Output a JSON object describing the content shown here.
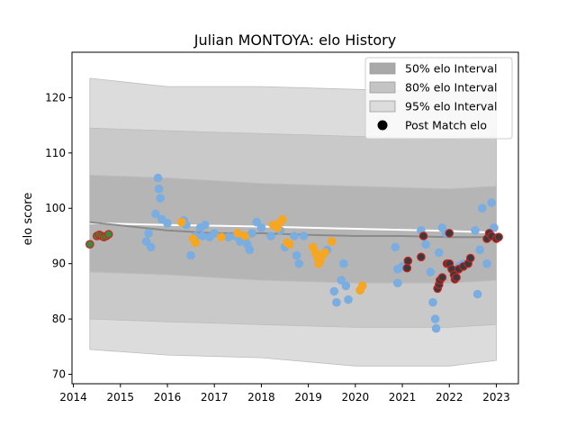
{
  "chart_data": {
    "type": "scatter",
    "title": "Julian MONTOYA: elo History",
    "xlabel": "",
    "ylabel": "elo score",
    "xlim": [
      2013.97,
      2023.47
    ],
    "ylim": [
      68.3,
      128.2
    ],
    "x_ticks": [
      2014,
      2015,
      2016,
      2017,
      2018,
      2019,
      2020,
      2021,
      2022,
      2023
    ],
    "x_tick_labels": [
      "2014",
      "2015",
      "2016",
      "2017",
      "2018",
      "2019",
      "2020",
      "2021",
      "2022",
      "2023"
    ],
    "y_ticks": [
      70,
      80,
      90,
      100,
      110,
      120
    ],
    "y_tick_labels": [
      "70",
      "80",
      "90",
      "100",
      "110",
      "120"
    ],
    "grid": false,
    "legend_position": "top-right",
    "legend": [
      {
        "label": "50% elo Interval",
        "kind": "patch",
        "color": "#a9a9a9"
      },
      {
        "label": "80% elo Interval",
        "kind": "patch",
        "color": "#c4c4c4"
      },
      {
        "label": "95% elo Interval",
        "kind": "patch",
        "color": "#dcdcdc"
      },
      {
        "label": "Post Match elo",
        "kind": "marker",
        "color": "#000000"
      }
    ],
    "bands": [
      {
        "name": "95% elo Interval",
        "color": "#dcdcdc",
        "x": [
          2014.35,
          2016.0,
          2018.0,
          2020.0,
          2022.0,
          2023.0
        ],
        "upper": [
          123.5,
          122.0,
          122.0,
          121.5,
          121.0,
          121.5
        ],
        "lower": [
          74.5,
          73.5,
          73.0,
          71.5,
          71.5,
          72.5
        ]
      },
      {
        "name": "80% elo Interval",
        "color": "#c9c9c9",
        "x": [
          2014.35,
          2016.0,
          2018.0,
          2020.0,
          2022.0,
          2023.0
        ],
        "upper": [
          114.5,
          114.0,
          113.5,
          113.0,
          112.5,
          113.0
        ],
        "lower": [
          80.0,
          79.5,
          79.0,
          78.5,
          78.5,
          79.0
        ]
      },
      {
        "name": "50% elo Interval",
        "color": "#b5b5b5",
        "x": [
          2014.35,
          2016.0,
          2018.0,
          2020.0,
          2022.0,
          2023.0
        ],
        "upper": [
          106.0,
          105.5,
          104.5,
          104.0,
          103.5,
          104.0
        ],
        "lower": [
          88.5,
          88.0,
          87.0,
          86.5,
          86.5,
          87.0
        ]
      }
    ],
    "lines": [
      {
        "name": "mean",
        "color": "#ffffff",
        "x": [
          2014.35,
          2016.0,
          2018.0,
          2020.0,
          2022.0,
          2023.0
        ],
        "y": [
          97.3,
          97.0,
          96.7,
          96.3,
          95.9,
          95.6
        ]
      },
      {
        "name": "median",
        "color": "#8a8a8a",
        "x": [
          2014.35,
          2016.0,
          2017.0,
          2018.0,
          2019.0,
          2020.0,
          2021.0,
          2022.0,
          2023.0
        ],
        "y": [
          97.5,
          96.0,
          95.5,
          95.5,
          95.2,
          95.0,
          95.0,
          94.8,
          94.8
        ]
      }
    ],
    "series": [
      {
        "name": "Post Match elo",
        "color": "#7aade0",
        "edge": "#7aade0",
        "points": [
          [
            2015.55,
            94.0
          ],
          [
            2015.6,
            95.5
          ],
          [
            2015.65,
            93.0
          ],
          [
            2015.75,
            99.0
          ],
          [
            2015.8,
            105.5
          ],
          [
            2015.82,
            103.5
          ],
          [
            2015.85,
            101.8
          ],
          [
            2015.88,
            98.0
          ],
          [
            2016.0,
            97.3
          ],
          [
            2016.35,
            97.8
          ],
          [
            2016.4,
            97.0
          ],
          [
            2016.5,
            91.5
          ],
          [
            2016.6,
            95.0
          ],
          [
            2016.7,
            96.5
          ],
          [
            2016.75,
            95.0
          ],
          [
            2016.8,
            97.0
          ],
          [
            2016.9,
            94.8
          ],
          [
            2017.0,
            95.5
          ],
          [
            2017.3,
            94.8
          ],
          [
            2017.45,
            95.0
          ],
          [
            2017.55,
            94.0
          ],
          [
            2017.65,
            94.5
          ],
          [
            2017.7,
            93.5
          ],
          [
            2017.75,
            92.5
          ],
          [
            2017.8,
            95.5
          ],
          [
            2017.9,
            97.5
          ],
          [
            2018.0,
            96.5
          ],
          [
            2018.2,
            95.0
          ],
          [
            2018.4,
            96.0
          ],
          [
            2018.5,
            93.0
          ],
          [
            2018.7,
            95.0
          ],
          [
            2018.75,
            91.5
          ],
          [
            2018.8,
            90.0
          ],
          [
            2018.9,
            95.0
          ],
          [
            2019.4,
            92.5
          ],
          [
            2019.55,
            85.0
          ],
          [
            2019.6,
            83.0
          ],
          [
            2019.7,
            87.0
          ],
          [
            2019.75,
            90.0
          ],
          [
            2019.8,
            86.0
          ],
          [
            2019.85,
            83.5
          ],
          [
            2020.85,
            93.0
          ],
          [
            2020.9,
            89.0
          ],
          [
            2020.9,
            86.5
          ],
          [
            2021.0,
            89.5
          ],
          [
            2021.4,
            96.0
          ],
          [
            2021.5,
            93.5
          ],
          [
            2021.6,
            88.5
          ],
          [
            2021.65,
            83.0
          ],
          [
            2021.7,
            80.0
          ],
          [
            2021.72,
            78.3
          ],
          [
            2021.78,
            92.0
          ],
          [
            2021.85,
            96.5
          ],
          [
            2021.92,
            95.5
          ],
          [
            2022.2,
            89.5
          ],
          [
            2022.3,
            90.0
          ],
          [
            2022.55,
            96.0
          ],
          [
            2022.6,
            84.5
          ],
          [
            2022.65,
            92.5
          ],
          [
            2022.7,
            100.0
          ],
          [
            2022.8,
            90.0
          ],
          [
            2022.9,
            101.0
          ],
          [
            2022.95,
            96.5
          ]
        ]
      },
      {
        "name": "Post Match elo",
        "color": "#f5a623",
        "edge": "#f5a623",
        "points": [
          [
            2016.3,
            97.5
          ],
          [
            2016.55,
            94.5
          ],
          [
            2016.6,
            93.8
          ],
          [
            2017.15,
            94.8
          ],
          [
            2017.5,
            95.5
          ],
          [
            2017.65,
            95.0
          ],
          [
            2018.25,
            97.0
          ],
          [
            2018.35,
            96.5
          ],
          [
            2018.4,
            97.5
          ],
          [
            2018.45,
            98.0
          ],
          [
            2018.55,
            93.8
          ],
          [
            2018.6,
            93.5
          ],
          [
            2019.1,
            93.0
          ],
          [
            2019.15,
            92.0
          ],
          [
            2019.2,
            91.0
          ],
          [
            2019.22,
            90.0
          ],
          [
            2019.25,
            90.5
          ],
          [
            2019.3,
            91.5
          ],
          [
            2019.35,
            92.0
          ],
          [
            2019.5,
            94.0
          ],
          [
            2020.1,
            85.2
          ],
          [
            2020.15,
            86.0
          ]
        ]
      },
      {
        "name": "Post Match elo",
        "color": "#3c8c3c",
        "edge": "#cc2222",
        "points": [
          [
            2014.35,
            93.5
          ],
          [
            2014.5,
            95.0
          ],
          [
            2014.55,
            95.2
          ],
          [
            2014.6,
            95.0
          ],
          [
            2014.65,
            94.8
          ],
          [
            2014.7,
            95.0
          ],
          [
            2014.75,
            95.3
          ]
        ]
      },
      {
        "name": "Post Match elo",
        "color": "#3a3a3a",
        "edge": "#cc2222",
        "points": [
          [
            2021.1,
            89.2
          ],
          [
            2021.12,
            90.5
          ],
          [
            2021.4,
            91.2
          ],
          [
            2021.45,
            95.0
          ],
          [
            2021.75,
            85.5
          ],
          [
            2021.78,
            86.2
          ],
          [
            2021.8,
            87.0
          ],
          [
            2021.85,
            87.5
          ],
          [
            2021.95,
            90.0
          ],
          [
            2022.0,
            90.0
          ],
          [
            2022.05,
            89.0
          ],
          [
            2022.1,
            88.0
          ],
          [
            2022.12,
            87.2
          ],
          [
            2022.15,
            87.5
          ],
          [
            2022.2,
            89.0
          ],
          [
            2022.3,
            89.5
          ],
          [
            2022.4,
            90.0
          ],
          [
            2022.45,
            91.0
          ],
          [
            2022.8,
            94.5
          ],
          [
            2022.85,
            95.5
          ],
          [
            2022.9,
            95.0
          ],
          [
            2023.0,
            94.5
          ],
          [
            2023.05,
            94.8
          ],
          [
            2022.0,
            95.5
          ]
        ]
      }
    ]
  }
}
